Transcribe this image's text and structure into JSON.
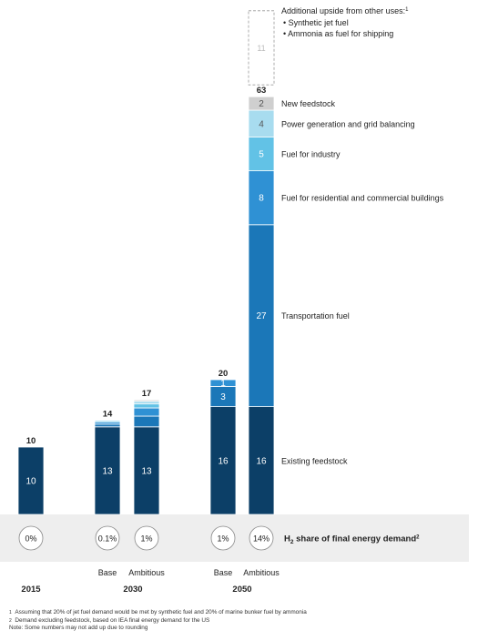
{
  "chart_data": {
    "type": "bar",
    "stacked": true,
    "title": "",
    "groups": [
      {
        "year": "2015",
        "bars": [
          {
            "label": "",
            "segments": [
              10
            ],
            "total": "10",
            "share": "0%"
          }
        ]
      },
      {
        "year": "2030",
        "bars": [
          {
            "label": "Base",
            "segments": [
              13,
              0.4,
              0.3,
              0.2,
              0.1,
              0
            ],
            "total": "14",
            "share": "0.1%"
          },
          {
            "label": "Ambitious",
            "segments": [
              13,
              1.6,
              1.2,
              0.6,
              0.4,
              0.2
            ],
            "total": "17",
            "share": "1%"
          }
        ]
      },
      {
        "year": "2050",
        "bars": [
          {
            "label": "Base",
            "segments": [
              16,
              3,
              1,
              0,
              0,
              0
            ],
            "total": "20",
            "share": "1%",
            "segment_labels": [
              "16",
              "3",
              "1",
              "",
              "",
              ""
            ]
          },
          {
            "label": "Ambitious",
            "segments": [
              16,
              27,
              8,
              5,
              4,
              2
            ],
            "total": "63",
            "share": "14%",
            "segment_labels": [
              "16",
              "27",
              "8",
              "5",
              "4",
              "2"
            ]
          }
        ]
      }
    ],
    "series": [
      {
        "name": "Existing feedstock",
        "color": "#0c3f67"
      },
      {
        "name": "Transportation fuel",
        "color": "#1b77b8"
      },
      {
        "name": "Fuel for residential and commercial buildings",
        "color": "#2f91d4"
      },
      {
        "name": "Fuel for industry",
        "color": "#62c2e6"
      },
      {
        "name": "Power generation and grid balancing",
        "color": "#a8dcef"
      },
      {
        "name": "New feedstock",
        "color": "#cfcfcf"
      }
    ],
    "upside": {
      "value": "11",
      "title": "Additional upside from other uses:",
      "title_sup": "1",
      "items": [
        "Synthetic jet fuel",
        "Ammonia as fuel for shipping"
      ]
    },
    "share_label_main": "H",
    "share_label_sub": "2",
    "share_label_rest": " share of final energy demand",
    "share_label_sup": "2"
  },
  "footnotes": [
    {
      "mark": "1",
      "text": "Assuming that 20% of jet fuel demand would be met by synthetic fuel and 20% of marine bunker fuel by ammonia"
    },
    {
      "mark": "2",
      "text": "Demand excluding feedstock, based on IEA final energy demand for the US"
    },
    {
      "mark": "",
      "text": "Note: Some numbers may not add up due to rounding"
    }
  ]
}
